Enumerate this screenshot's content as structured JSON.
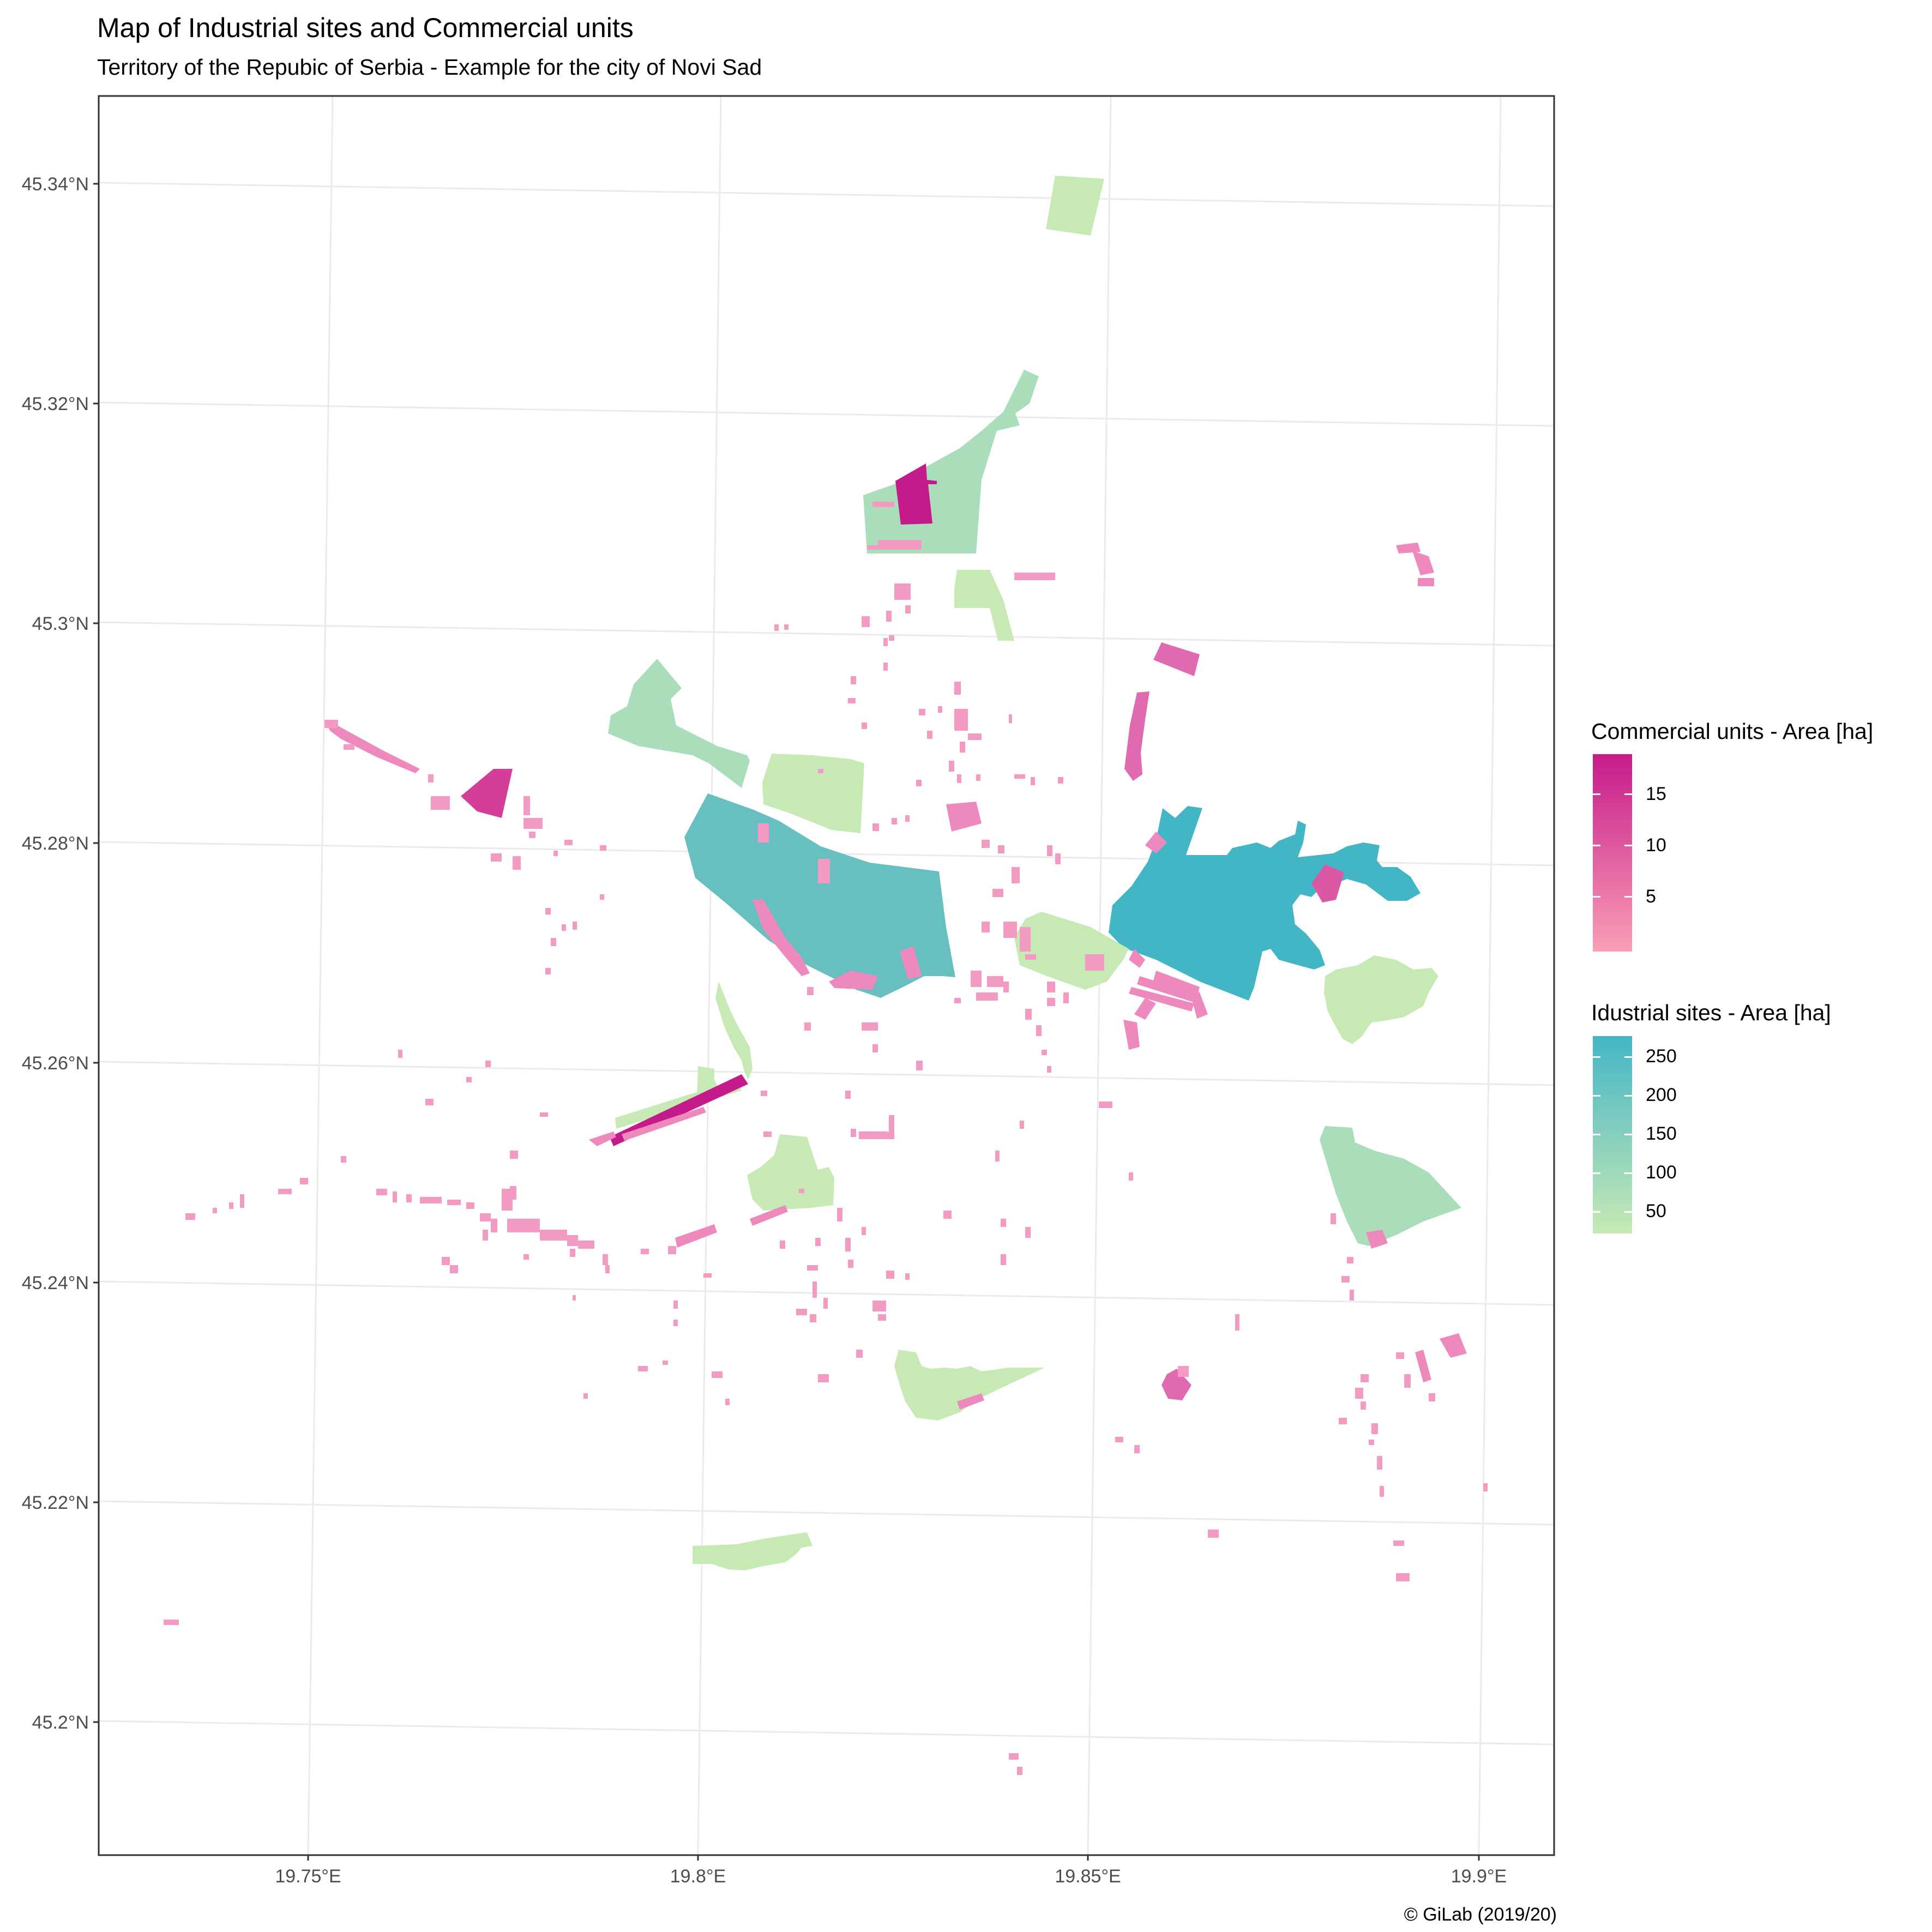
{
  "title": "Map of Industrial sites and Commercial units",
  "subtitle": "Territory of the Repubic of Serbia - Example for the city of Novi Sad",
  "caption": "© GiLab (2019/20)",
  "axes": {
    "x_ticks": [
      "19.75°E",
      "19.8°E",
      "19.85°E",
      "19.9°E"
    ],
    "y_ticks": [
      "45.34°N",
      "45.32°N",
      "45.3°N",
      "45.28°N",
      "45.26°N",
      "45.24°N",
      "45.22°N",
      "45.2°N"
    ]
  },
  "legends": {
    "commercial": {
      "title": "Commercial units - Area [ha]",
      "labels": [
        "15",
        "10",
        "5"
      ],
      "color_high": "#c51b8a",
      "color_low": "#fa9fb5"
    },
    "industrial": {
      "title": "Idustrial sites - Area [ha]",
      "labels": [
        "250",
        "200",
        "150",
        "100",
        "50"
      ],
      "color_high": "#43b6c6",
      "color_low": "#c7e9b4"
    }
  }
}
